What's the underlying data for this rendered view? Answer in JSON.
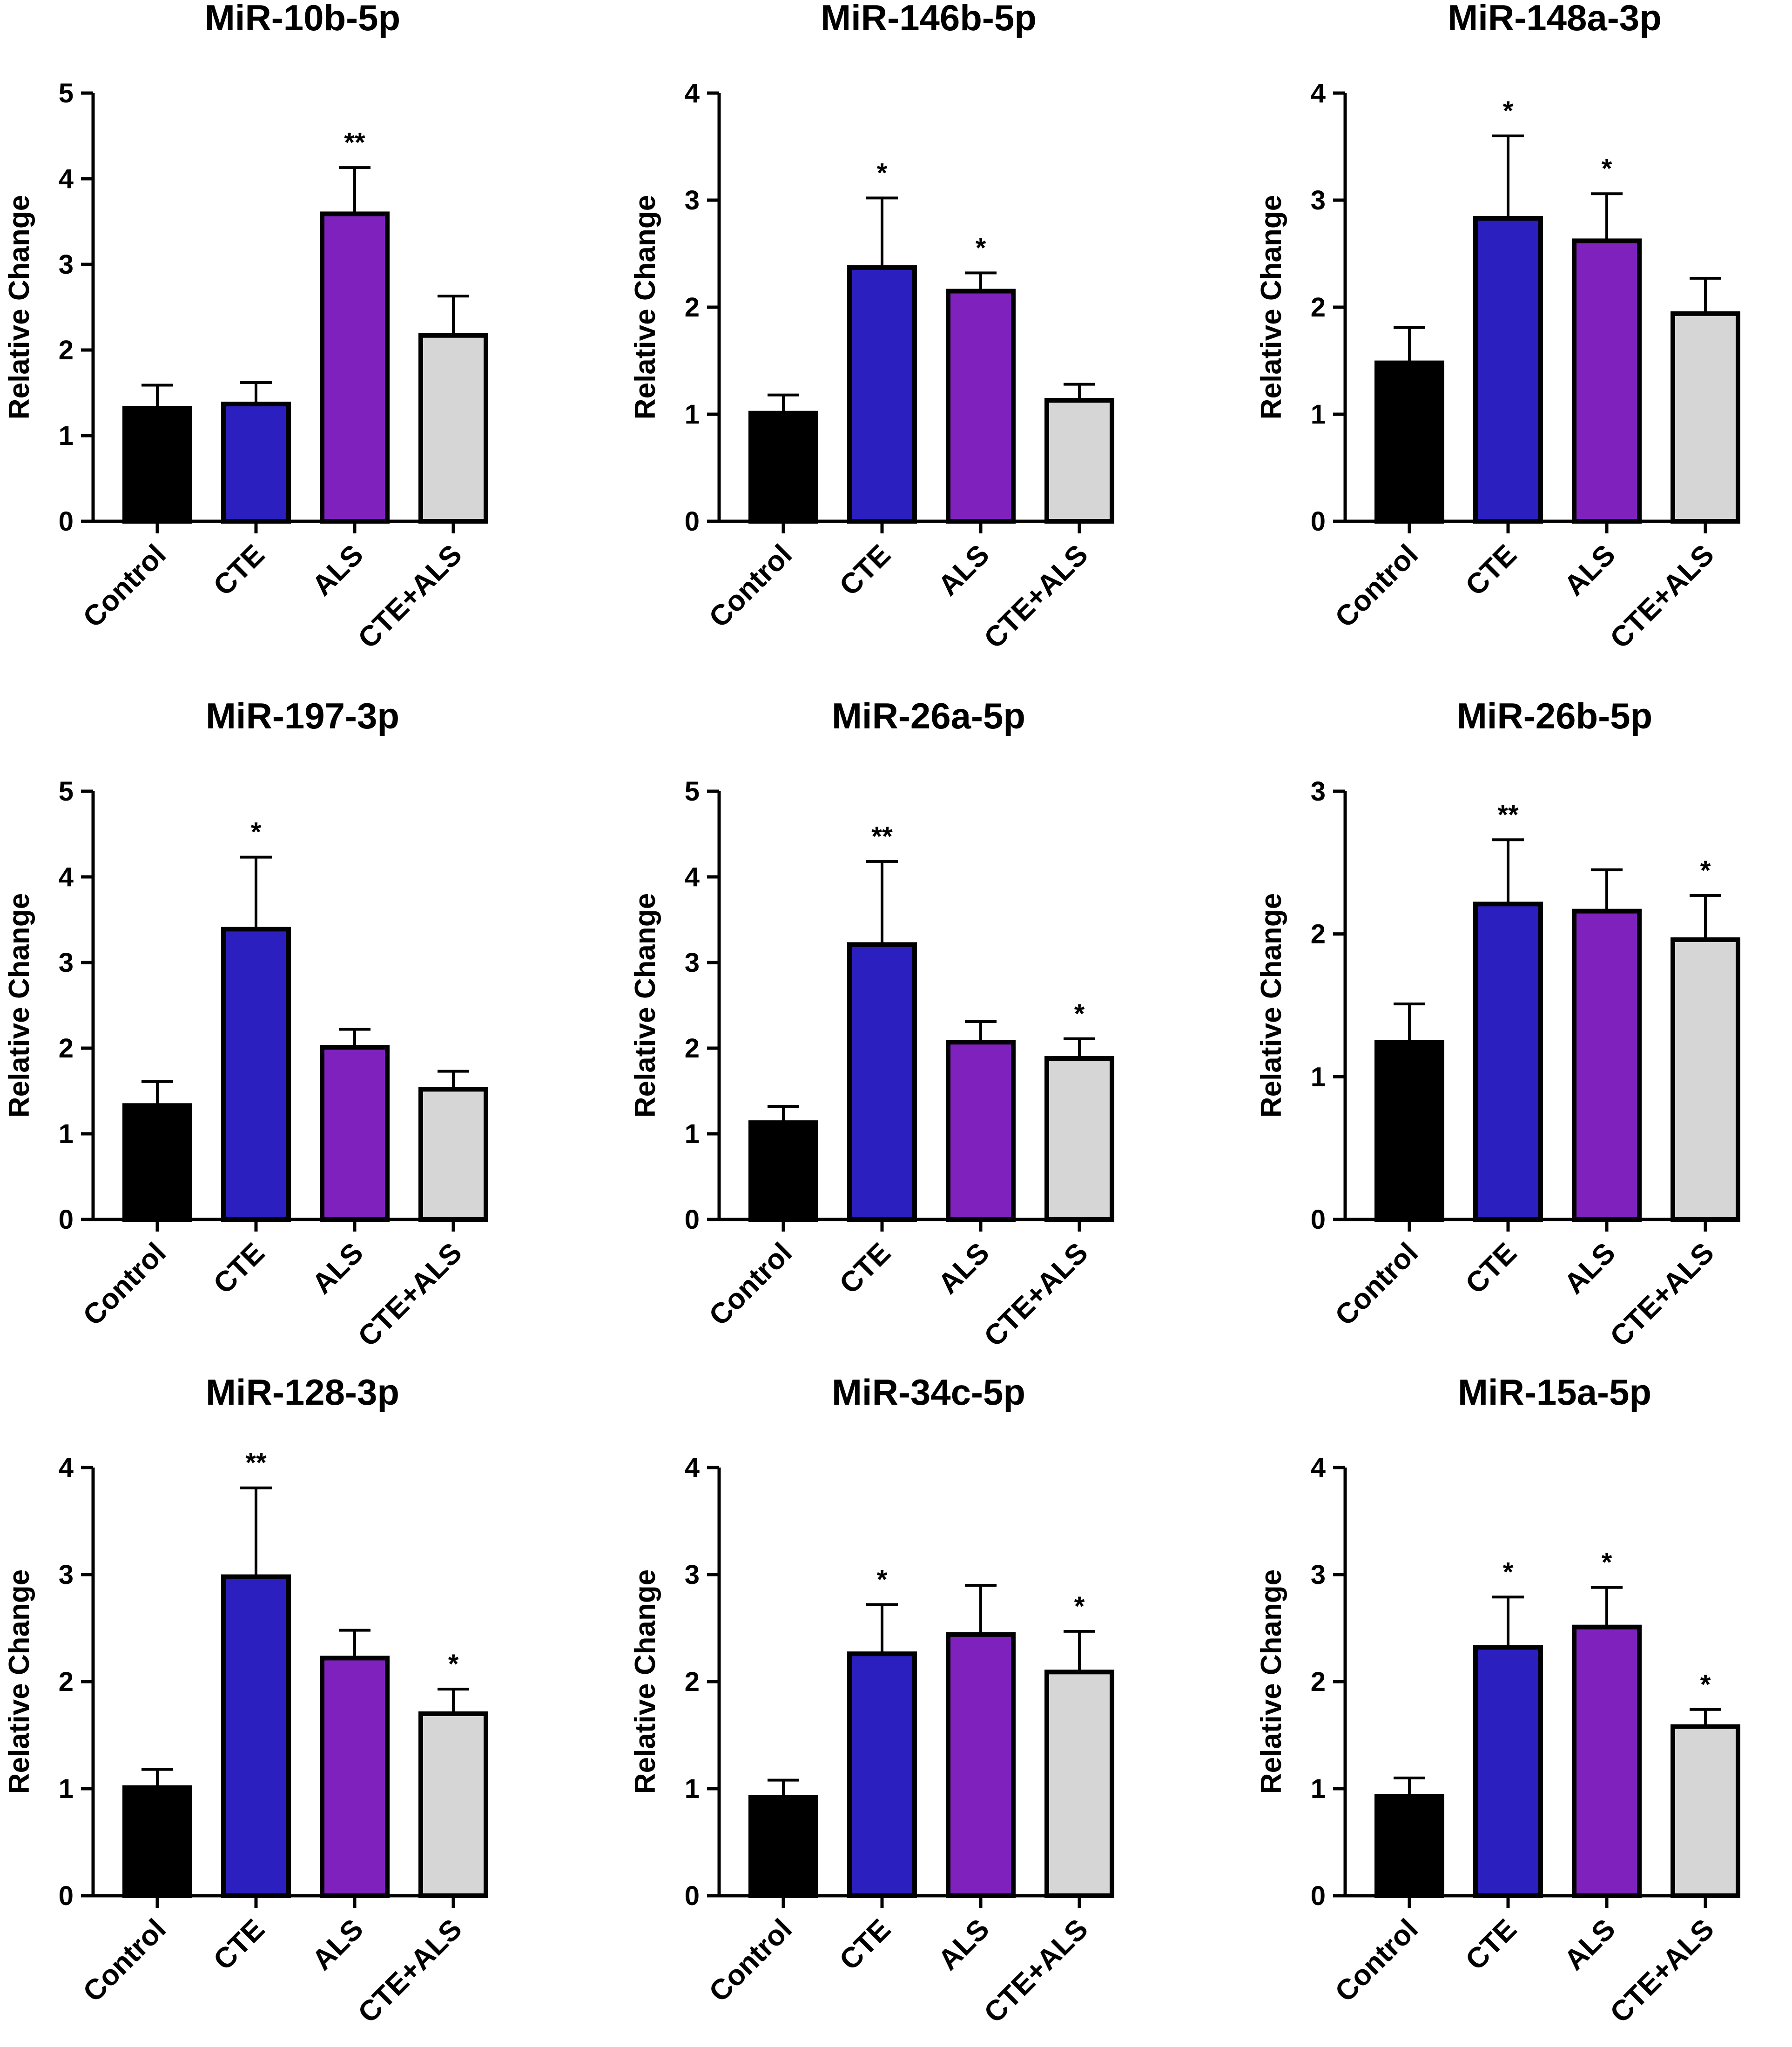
{
  "figure": {
    "y_axis_label": "Relative Change",
    "categories": [
      "Control",
      "CTE",
      "ALS",
      "CTE+ALS"
    ],
    "group_colors": [
      "#000000",
      "#2b1fc0",
      "#7f22bd",
      "#d6d6d6"
    ],
    "edge_color": "#000000"
  },
  "chart_data": [
    {
      "type": "bar",
      "title": "MiR-10b-5p",
      "ylabel": "Relative Change",
      "categories": [
        "Control",
        "CTE",
        "ALS",
        "CTE+ALS"
      ],
      "ylim": [
        0,
        5
      ],
      "yticks": [
        "0",
        "1",
        "2",
        "3",
        "4",
        "5"
      ],
      "values": [
        1.32,
        1.37,
        3.59,
        2.17
      ],
      "errors": [
        0.27,
        0.25,
        0.54,
        0.46
      ],
      "significance": [
        "",
        "",
        "**",
        ""
      ]
    },
    {
      "type": "bar",
      "title": "MiR-146b-5p",
      "ylabel": "Relative Change",
      "categories": [
        "Control",
        "CTE",
        "ALS",
        "CTE+ALS"
      ],
      "ylim": [
        0,
        4
      ],
      "yticks": [
        "0",
        "1",
        "2",
        "3",
        "4"
      ],
      "values": [
        1.01,
        2.37,
        2.15,
        1.13
      ],
      "errors": [
        0.17,
        0.65,
        0.17,
        0.15
      ],
      "significance": [
        "",
        "*",
        "*",
        ""
      ]
    },
    {
      "type": "bar",
      "title": "MiR-148a-3p",
      "ylabel": "Relative Change",
      "categories": [
        "Control",
        "CTE",
        "ALS",
        "CTE+ALS"
      ],
      "ylim": [
        0,
        4
      ],
      "yticks": [
        "0",
        "1",
        "2",
        "3",
        "4"
      ],
      "values": [
        1.48,
        2.83,
        2.62,
        1.94
      ],
      "errors": [
        0.33,
        0.77,
        0.44,
        0.33
      ],
      "significance": [
        "",
        "*",
        "*",
        ""
      ]
    },
    {
      "type": "bar",
      "title": "MiR-197-3p",
      "ylabel": "Relative Change",
      "categories": [
        "Control",
        "CTE",
        "ALS",
        "CTE+ALS"
      ],
      "ylim": [
        0,
        5
      ],
      "yticks": [
        "0",
        "1",
        "2",
        "3",
        "4",
        "5"
      ],
      "values": [
        1.33,
        3.39,
        2.01,
        1.52
      ],
      "errors": [
        0.28,
        0.84,
        0.21,
        0.21
      ],
      "significance": [
        "",
        "*",
        "",
        ""
      ]
    },
    {
      "type": "bar",
      "title": "MiR-26a-5p",
      "ylabel": "Relative Change",
      "categories": [
        "Control",
        "CTE",
        "ALS",
        "CTE+ALS"
      ],
      "ylim": [
        0,
        5
      ],
      "yticks": [
        "0",
        "1",
        "2",
        "3",
        "4",
        "5"
      ],
      "values": [
        1.13,
        3.21,
        2.07,
        1.88
      ],
      "errors": [
        0.19,
        0.97,
        0.24,
        0.23
      ],
      "significance": [
        "",
        "**",
        "",
        "*"
      ]
    },
    {
      "type": "bar",
      "title": "MiR-26b-5p",
      "ylabel": "Relative Change",
      "categories": [
        "Control",
        "CTE",
        "ALS",
        "CTE+ALS"
      ],
      "ylim": [
        0,
        3
      ],
      "yticks": [
        "0",
        "1",
        "2",
        "3"
      ],
      "values": [
        1.24,
        2.21,
        2.16,
        1.96
      ],
      "errors": [
        0.27,
        0.45,
        0.29,
        0.31
      ],
      "significance": [
        "",
        "**",
        "",
        "*"
      ]
    },
    {
      "type": "bar",
      "title": "MiR-128-3p",
      "ylabel": "Relative Change",
      "categories": [
        "Control",
        "CTE",
        "ALS",
        "CTE+ALS"
      ],
      "ylim": [
        0,
        4
      ],
      "yticks": [
        "0",
        "1",
        "2",
        "3",
        "4"
      ],
      "values": [
        1.01,
        2.98,
        2.22,
        1.7
      ],
      "errors": [
        0.17,
        0.83,
        0.26,
        0.23
      ],
      "significance": [
        "",
        "**",
        "",
        "*"
      ]
    },
    {
      "type": "bar",
      "title": "MiR-34c-5p",
      "ylabel": "Relative Change",
      "categories": [
        "Control",
        "CTE",
        "ALS",
        "CTE+ALS"
      ],
      "ylim": [
        0,
        4
      ],
      "yticks": [
        "0",
        "1",
        "2",
        "3",
        "4"
      ],
      "values": [
        0.92,
        2.26,
        2.44,
        2.09
      ],
      "errors": [
        0.16,
        0.46,
        0.46,
        0.38
      ],
      "significance": [
        "",
        "*",
        "",
        "*"
      ]
    },
    {
      "type": "bar",
      "title": "MiR-15a-5p",
      "ylabel": "Relative Change",
      "categories": [
        "Control",
        "CTE",
        "ALS",
        "CTE+ALS"
      ],
      "ylim": [
        0,
        4
      ],
      "yticks": [
        "0",
        "1",
        "2",
        "3",
        "4"
      ],
      "values": [
        0.93,
        2.32,
        2.51,
        1.58
      ],
      "errors": [
        0.17,
        0.47,
        0.37,
        0.16
      ],
      "significance": [
        "",
        "*",
        "*",
        "*"
      ]
    }
  ]
}
